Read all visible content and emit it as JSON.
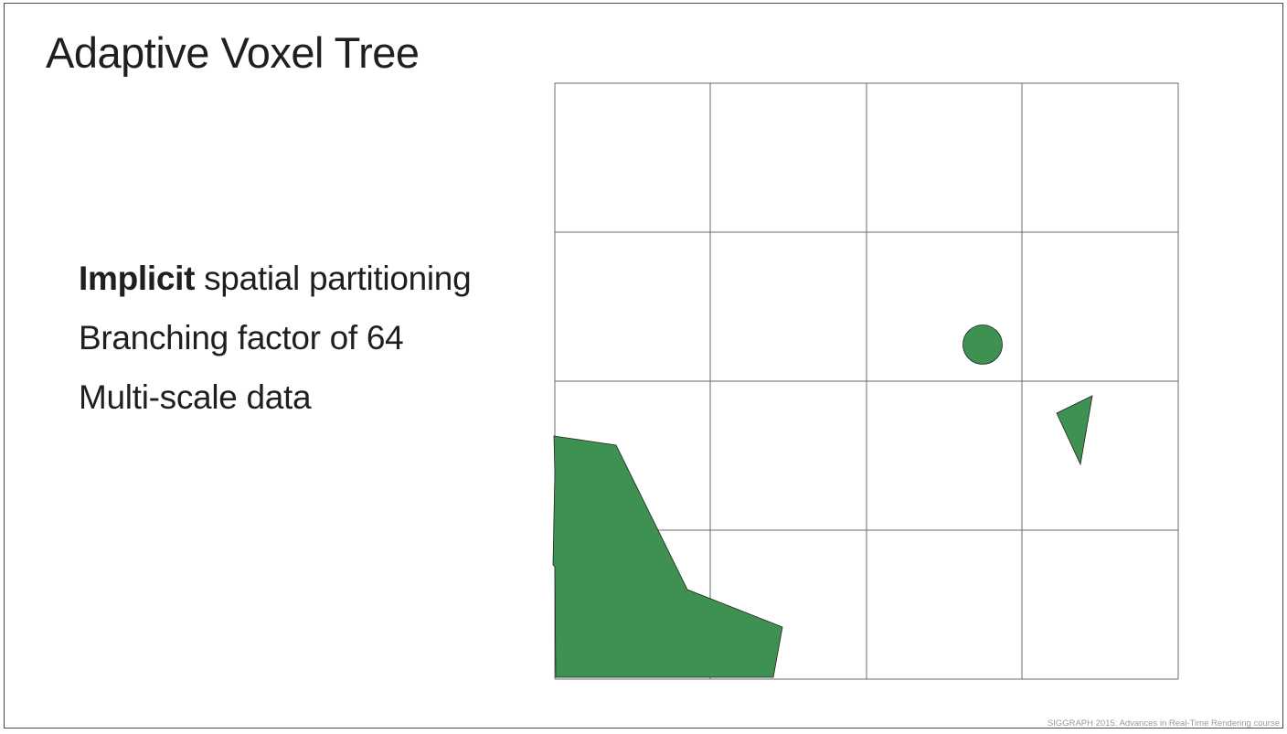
{
  "slide": {
    "title": "Adaptive Voxel Tree",
    "bullets": [
      {
        "bold": "Implicit",
        "rest": " spatial partitioning"
      },
      {
        "bold": "",
        "rest": "Branching factor of 64"
      },
      {
        "bold": "",
        "rest": "Multi-scale data"
      }
    ],
    "footer": "SIGGRAPH 2015: Advances in Real-Time Rendering course"
  },
  "diagram": {
    "grid": {
      "rows": 4,
      "cols": 4,
      "line_color": "#6b6b6b"
    },
    "shape_fill": "#3e9150",
    "shape_stroke": "#222222",
    "shapes": [
      {
        "kind": "polygon",
        "name": "terrain-polygon"
      },
      {
        "kind": "circle",
        "name": "sphere-shape"
      },
      {
        "kind": "polygon",
        "name": "triangle-shape"
      }
    ]
  }
}
